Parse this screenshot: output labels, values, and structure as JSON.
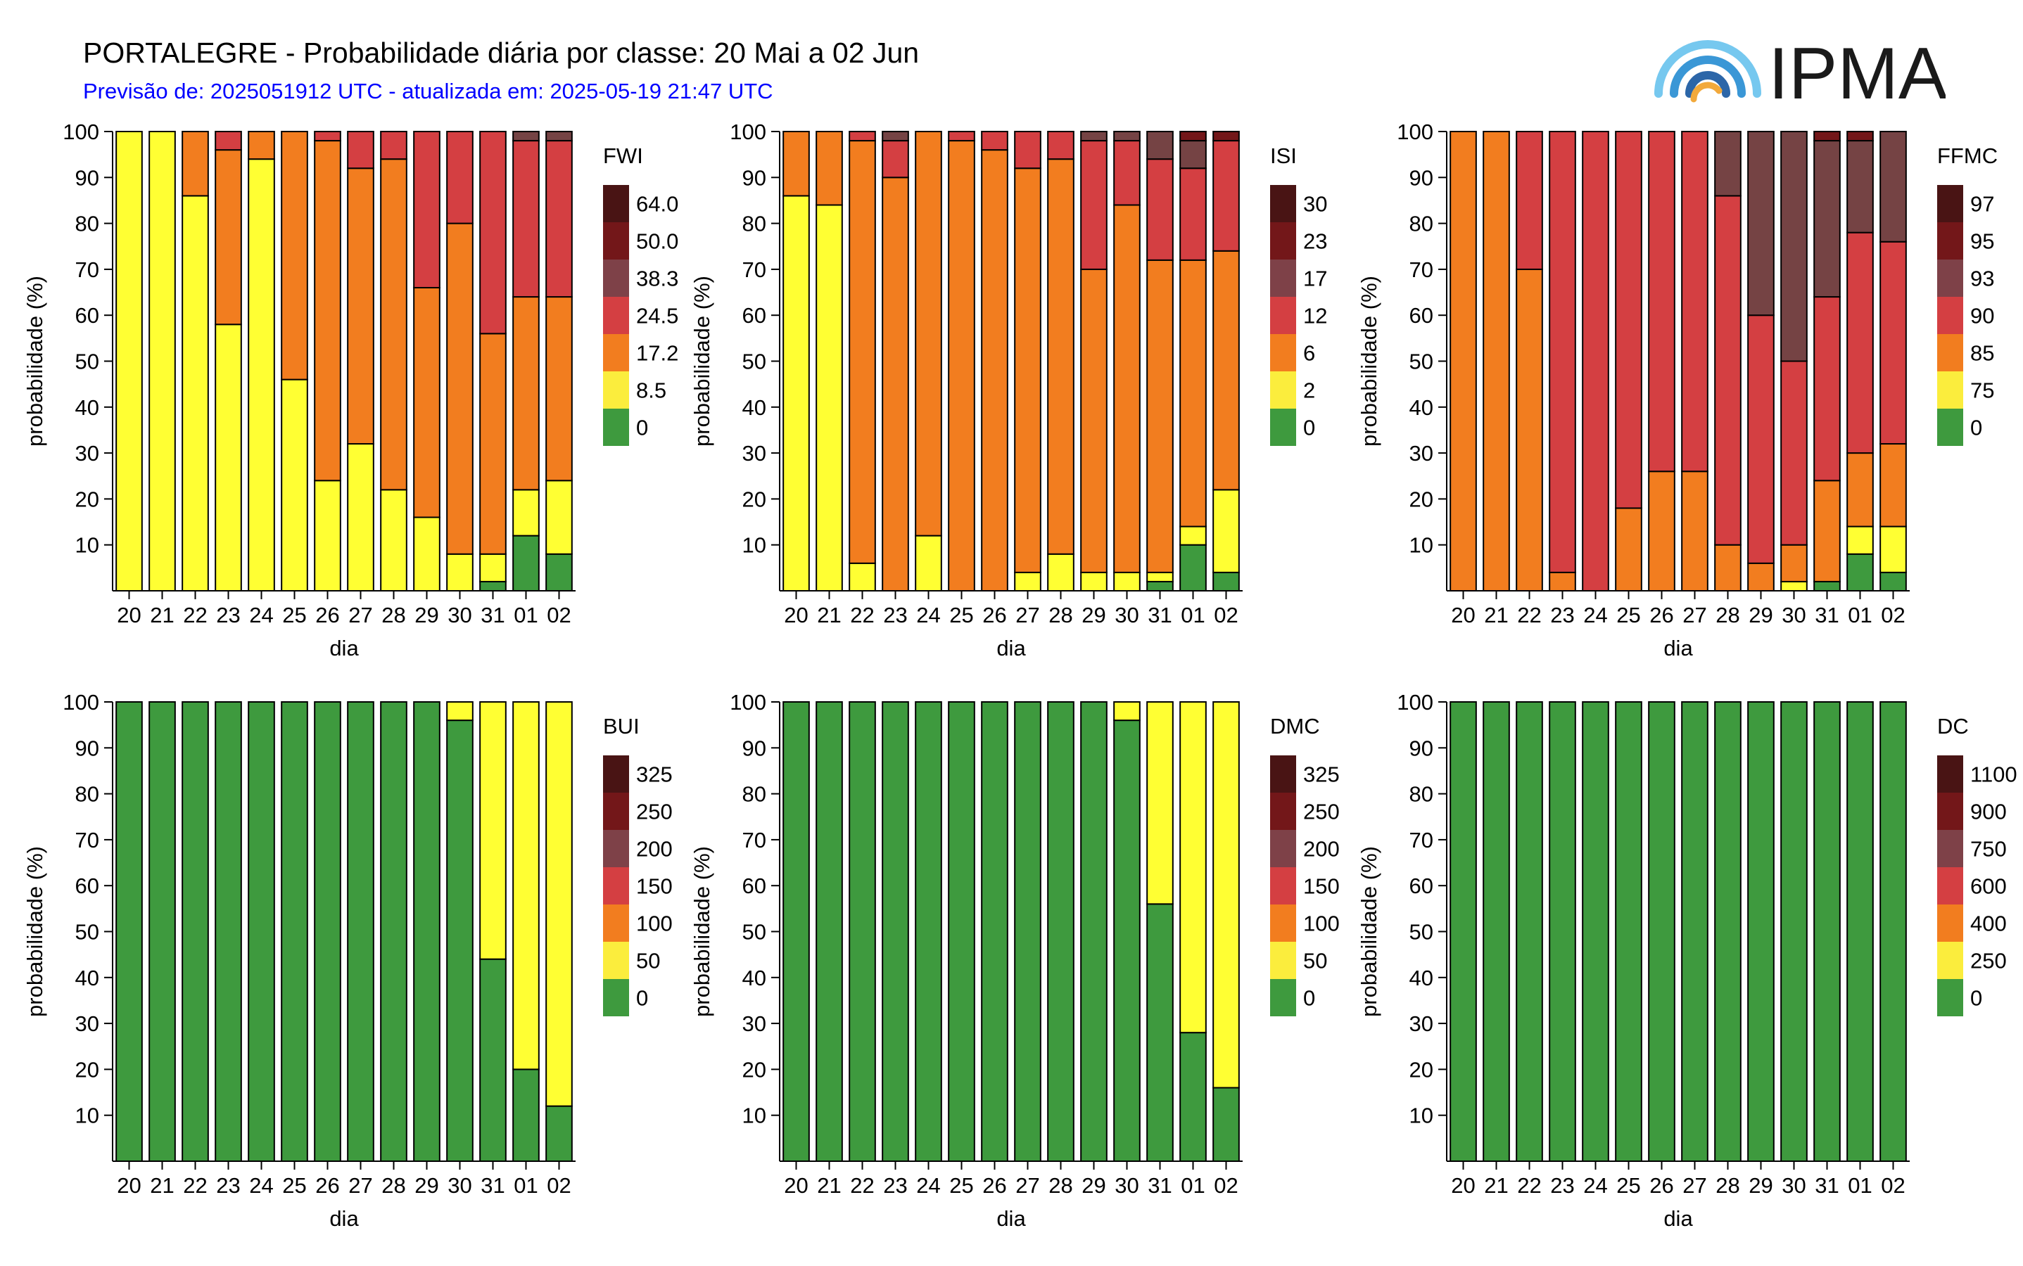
{
  "header": {
    "title": "PORTALEGRE - Probabilidade diária por classe: 20 Mai a 02 Jun",
    "subtitle": "Previsão de: 2025051912 UTC - atualizada em: 2025-05-19 21:47 UTC",
    "logo_text": "IPMA"
  },
  "colors": {
    "classes": [
      "#3e9a3e",
      "#fbed3d",
      "#f27d1f",
      "#d43f42",
      "#7e4148",
      "#731719",
      "#491414"
    ],
    "bar_class_colors": [
      "#3e9a3e",
      "#ffff33",
      "#f27d1f",
      "#d43f42",
      "#754344",
      "#731719",
      "#491414"
    ],
    "logo": [
      "#2c66a8",
      "#3a97d6",
      "#76c8ef",
      "#f2a93b"
    ]
  },
  "chart_data": [
    {
      "type": "bar",
      "stacked": true,
      "index": "FWI",
      "xlabel": "dia",
      "ylabel": "probabilidade (%)",
      "ylim": [
        0,
        100
      ],
      "yticks": [
        10,
        20,
        30,
        40,
        50,
        60,
        70,
        80,
        90,
        100
      ],
      "categories": [
        "20",
        "21",
        "22",
        "23",
        "24",
        "25",
        "26",
        "27",
        "28",
        "29",
        "30",
        "31",
        "01",
        "02"
      ],
      "legend_ticks": [
        "0",
        "8.5",
        "17.2",
        "24.5",
        "38.3",
        "50.0",
        "64.0"
      ],
      "bars": [
        [
          0,
          100,
          0,
          0,
          0,
          0,
          0
        ],
        [
          0,
          100,
          0,
          0,
          0,
          0,
          0
        ],
        [
          0,
          86,
          14,
          0,
          0,
          0,
          0
        ],
        [
          0,
          58,
          38,
          4,
          0,
          0,
          0
        ],
        [
          0,
          94,
          6,
          0,
          0,
          0,
          0
        ],
        [
          0,
          46,
          54,
          0,
          0,
          0,
          0
        ],
        [
          0,
          24,
          74,
          2,
          0,
          0,
          0
        ],
        [
          0,
          32,
          60,
          8,
          0,
          0,
          0
        ],
        [
          0,
          22,
          72,
          6,
          0,
          0,
          0
        ],
        [
          0,
          16,
          50,
          34,
          0,
          0,
          0
        ],
        [
          0,
          8,
          72,
          20,
          0,
          0,
          0
        ],
        [
          2,
          6,
          48,
          44,
          0,
          0,
          0
        ],
        [
          12,
          10,
          42,
          34,
          2,
          0,
          0
        ],
        [
          8,
          16,
          40,
          34,
          2,
          0,
          0
        ]
      ]
    },
    {
      "type": "bar",
      "stacked": true,
      "index": "ISI",
      "xlabel": "dia",
      "ylabel": "probabilidade (%)",
      "ylim": [
        0,
        100
      ],
      "yticks": [
        10,
        20,
        30,
        40,
        50,
        60,
        70,
        80,
        90,
        100
      ],
      "categories": [
        "20",
        "21",
        "22",
        "23",
        "24",
        "25",
        "26",
        "27",
        "28",
        "29",
        "30",
        "31",
        "01",
        "02"
      ],
      "legend_ticks": [
        "0",
        "2",
        "6",
        "12",
        "17",
        "23",
        "30"
      ],
      "bars": [
        [
          0,
          86,
          14,
          0,
          0,
          0,
          0
        ],
        [
          0,
          84,
          16,
          0,
          0,
          0,
          0
        ],
        [
          0,
          6,
          92,
          2,
          0,
          0,
          0
        ],
        [
          0,
          0,
          90,
          8,
          2,
          0,
          0
        ],
        [
          0,
          12,
          88,
          0,
          0,
          0,
          0
        ],
        [
          0,
          0,
          98,
          2,
          0,
          0,
          0
        ],
        [
          0,
          0,
          96,
          4,
          0,
          0,
          0
        ],
        [
          0,
          4,
          88,
          8,
          0,
          0,
          0
        ],
        [
          0,
          8,
          86,
          6,
          0,
          0,
          0
        ],
        [
          0,
          4,
          66,
          28,
          2,
          0,
          0
        ],
        [
          0,
          4,
          80,
          14,
          2,
          0,
          0
        ],
        [
          2,
          2,
          68,
          22,
          6,
          0,
          0
        ],
        [
          10,
          4,
          58,
          20,
          6,
          2,
          0
        ],
        [
          4,
          18,
          52,
          24,
          0,
          2,
          0
        ]
      ]
    },
    {
      "type": "bar",
      "stacked": true,
      "index": "FFMC",
      "xlabel": "dia",
      "ylabel": "probabilidade (%)",
      "ylim": [
        0,
        100
      ],
      "yticks": [
        10,
        20,
        30,
        40,
        50,
        60,
        70,
        80,
        90,
        100
      ],
      "categories": [
        "20",
        "21",
        "22",
        "23",
        "24",
        "25",
        "26",
        "27",
        "28",
        "29",
        "30",
        "31",
        "01",
        "02"
      ],
      "legend_ticks": [
        "0",
        "75",
        "85",
        "90",
        "93",
        "95",
        "97"
      ],
      "bars": [
        [
          0,
          0,
          100,
          0,
          0,
          0,
          0
        ],
        [
          0,
          0,
          100,
          0,
          0,
          0,
          0
        ],
        [
          0,
          0,
          70,
          30,
          0,
          0,
          0
        ],
        [
          0,
          0,
          4,
          96,
          0,
          0,
          0
        ],
        [
          0,
          0,
          0,
          100,
          0,
          0,
          0
        ],
        [
          0,
          0,
          18,
          82,
          0,
          0,
          0
        ],
        [
          0,
          0,
          26,
          74,
          0,
          0,
          0
        ],
        [
          0,
          0,
          26,
          74,
          0,
          0,
          0
        ],
        [
          0,
          0,
          10,
          76,
          14,
          0,
          0
        ],
        [
          0,
          0,
          6,
          54,
          40,
          0,
          0
        ],
        [
          0,
          2,
          8,
          40,
          50,
          0,
          0
        ],
        [
          2,
          0,
          22,
          40,
          34,
          2,
          0
        ],
        [
          8,
          6,
          16,
          48,
          20,
          2,
          0
        ],
        [
          4,
          10,
          18,
          44,
          24,
          0,
          0
        ]
      ]
    },
    {
      "type": "bar",
      "stacked": true,
      "index": "BUI",
      "xlabel": "dia",
      "ylabel": "probabilidade (%)",
      "ylim": [
        0,
        100
      ],
      "yticks": [
        10,
        20,
        30,
        40,
        50,
        60,
        70,
        80,
        90,
        100
      ],
      "categories": [
        "20",
        "21",
        "22",
        "23",
        "24",
        "25",
        "26",
        "27",
        "28",
        "29",
        "30",
        "31",
        "01",
        "02"
      ],
      "legend_ticks": [
        "0",
        "50",
        "100",
        "150",
        "200",
        "250",
        "325"
      ],
      "bars": [
        [
          100,
          0,
          0,
          0,
          0,
          0,
          0
        ],
        [
          100,
          0,
          0,
          0,
          0,
          0,
          0
        ],
        [
          100,
          0,
          0,
          0,
          0,
          0,
          0
        ],
        [
          100,
          0,
          0,
          0,
          0,
          0,
          0
        ],
        [
          100,
          0,
          0,
          0,
          0,
          0,
          0
        ],
        [
          100,
          0,
          0,
          0,
          0,
          0,
          0
        ],
        [
          100,
          0,
          0,
          0,
          0,
          0,
          0
        ],
        [
          100,
          0,
          0,
          0,
          0,
          0,
          0
        ],
        [
          100,
          0,
          0,
          0,
          0,
          0,
          0
        ],
        [
          100,
          0,
          0,
          0,
          0,
          0,
          0
        ],
        [
          96,
          4,
          0,
          0,
          0,
          0,
          0
        ],
        [
          44,
          56,
          0,
          0,
          0,
          0,
          0
        ],
        [
          20,
          80,
          0,
          0,
          0,
          0,
          0
        ],
        [
          12,
          88,
          0,
          0,
          0,
          0,
          0
        ]
      ]
    },
    {
      "type": "bar",
      "stacked": true,
      "index": "DMC",
      "xlabel": "dia",
      "ylabel": "probabilidade (%)",
      "ylim": [
        0,
        100
      ],
      "yticks": [
        10,
        20,
        30,
        40,
        50,
        60,
        70,
        80,
        90,
        100
      ],
      "categories": [
        "20",
        "21",
        "22",
        "23",
        "24",
        "25",
        "26",
        "27",
        "28",
        "29",
        "30",
        "31",
        "01",
        "02"
      ],
      "legend_ticks": [
        "0",
        "50",
        "100",
        "150",
        "200",
        "250",
        "325"
      ],
      "bars": [
        [
          100,
          0,
          0,
          0,
          0,
          0,
          0
        ],
        [
          100,
          0,
          0,
          0,
          0,
          0,
          0
        ],
        [
          100,
          0,
          0,
          0,
          0,
          0,
          0
        ],
        [
          100,
          0,
          0,
          0,
          0,
          0,
          0
        ],
        [
          100,
          0,
          0,
          0,
          0,
          0,
          0
        ],
        [
          100,
          0,
          0,
          0,
          0,
          0,
          0
        ],
        [
          100,
          0,
          0,
          0,
          0,
          0,
          0
        ],
        [
          100,
          0,
          0,
          0,
          0,
          0,
          0
        ],
        [
          100,
          0,
          0,
          0,
          0,
          0,
          0
        ],
        [
          100,
          0,
          0,
          0,
          0,
          0,
          0
        ],
        [
          96,
          4,
          0,
          0,
          0,
          0,
          0
        ],
        [
          56,
          44,
          0,
          0,
          0,
          0,
          0
        ],
        [
          28,
          72,
          0,
          0,
          0,
          0,
          0
        ],
        [
          16,
          84,
          0,
          0,
          0,
          0,
          0
        ]
      ]
    },
    {
      "type": "bar",
      "stacked": true,
      "index": "DC",
      "xlabel": "dia",
      "ylabel": "probabilidade (%)",
      "ylim": [
        0,
        100
      ],
      "yticks": [
        10,
        20,
        30,
        40,
        50,
        60,
        70,
        80,
        90,
        100
      ],
      "categories": [
        "20",
        "21",
        "22",
        "23",
        "24",
        "25",
        "26",
        "27",
        "28",
        "29",
        "30",
        "31",
        "01",
        "02"
      ],
      "legend_ticks": [
        "0",
        "250",
        "400",
        "600",
        "750",
        "900",
        "1100"
      ],
      "bars": [
        [
          100,
          0,
          0,
          0,
          0,
          0,
          0
        ],
        [
          100,
          0,
          0,
          0,
          0,
          0,
          0
        ],
        [
          100,
          0,
          0,
          0,
          0,
          0,
          0
        ],
        [
          100,
          0,
          0,
          0,
          0,
          0,
          0
        ],
        [
          100,
          0,
          0,
          0,
          0,
          0,
          0
        ],
        [
          100,
          0,
          0,
          0,
          0,
          0,
          0
        ],
        [
          100,
          0,
          0,
          0,
          0,
          0,
          0
        ],
        [
          100,
          0,
          0,
          0,
          0,
          0,
          0
        ],
        [
          100,
          0,
          0,
          0,
          0,
          0,
          0
        ],
        [
          100,
          0,
          0,
          0,
          0,
          0,
          0
        ],
        [
          100,
          0,
          0,
          0,
          0,
          0,
          0
        ],
        [
          100,
          0,
          0,
          0,
          0,
          0,
          0
        ],
        [
          100,
          0,
          0,
          0,
          0,
          0,
          0
        ],
        [
          100,
          0,
          0,
          0,
          0,
          0,
          0
        ]
      ]
    }
  ]
}
